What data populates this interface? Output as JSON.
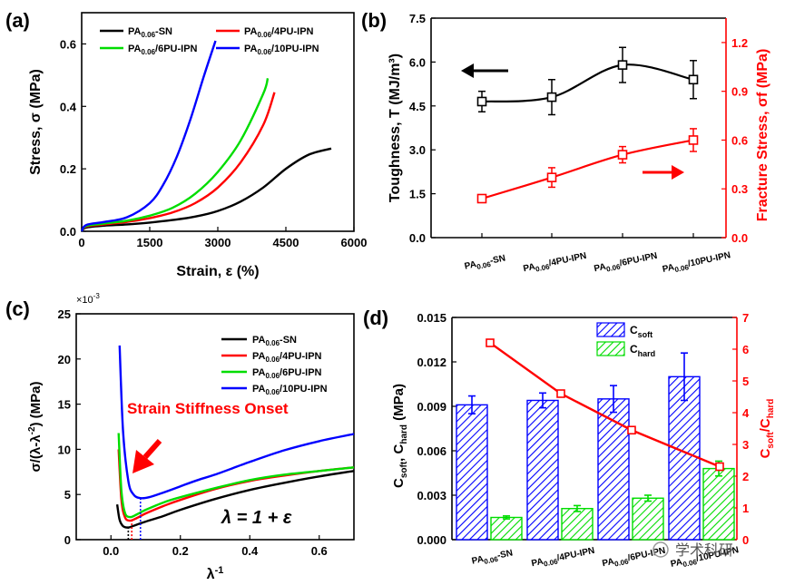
{
  "panels": {
    "a": {
      "label": "(a)"
    },
    "b": {
      "label": "(b)"
    },
    "c": {
      "label": "(c)",
      "axis_multiplier": "×10",
      "axis_multiplier_exp": "-3"
    },
    "d": {
      "label": "(d)"
    }
  },
  "watermark": "学术科研",
  "chart_data": [
    {
      "panel": "a",
      "type": "line",
      "xlabel": "Strain, ε (%)",
      "ylabel": "Stress, σ (MPa)",
      "xlim": [
        0,
        6000
      ],
      "ylim": [
        0,
        0.7
      ],
      "xticks": [
        0,
        1500,
        3000,
        4500,
        6000
      ],
      "yticks": [
        0.0,
        0.2,
        0.4,
        0.6
      ],
      "legend": "top",
      "series": [
        {
          "name": "PA0.06-SN",
          "base": "PA",
          "sub": "0.06",
          "suffix": "-SN",
          "color": "#000000",
          "x": [
            0,
            100,
            500,
            1000,
            1500,
            2000,
            2500,
            3000,
            3500,
            4000,
            4500,
            5000,
            5500
          ],
          "y": [
            0,
            0.012,
            0.018,
            0.022,
            0.028,
            0.036,
            0.047,
            0.065,
            0.095,
            0.14,
            0.2,
            0.245,
            0.265
          ]
        },
        {
          "name": "PA0.06/4PU-IPN",
          "base": "PA",
          "sub": "0.06",
          "suffix": "/4PU-IPN",
          "color": "#ff0000",
          "x": [
            0,
            100,
            500,
            1000,
            1500,
            2000,
            2500,
            3000,
            3500,
            4000,
            4250
          ],
          "y": [
            0,
            0.015,
            0.022,
            0.03,
            0.042,
            0.06,
            0.09,
            0.14,
            0.22,
            0.34,
            0.445
          ]
        },
        {
          "name": "PA0.06/6PU-IPN",
          "base": "PA",
          "sub": "0.06",
          "suffix": "/6PU-IPN",
          "color": "#00dd00",
          "x": [
            0,
            100,
            500,
            1000,
            1500,
            2000,
            2500,
            3000,
            3500,
            4000,
            4100
          ],
          "y": [
            0,
            0.017,
            0.025,
            0.034,
            0.05,
            0.075,
            0.12,
            0.19,
            0.29,
            0.44,
            0.49
          ]
        },
        {
          "name": "PA0.06/10PU-IPN",
          "base": "PA",
          "sub": "0.06",
          "suffix": "/10PU-IPN",
          "color": "#0000ff",
          "x": [
            0,
            100,
            500,
            1000,
            1500,
            1800,
            2100,
            2400,
            2700,
            2950
          ],
          "y": [
            0,
            0.02,
            0.03,
            0.045,
            0.09,
            0.15,
            0.24,
            0.36,
            0.5,
            0.61
          ]
        }
      ]
    },
    {
      "panel": "b",
      "type": "line",
      "categories": [
        "PA0.06-SN",
        "PA0.06/4PU-IPN",
        "PA0.06/6PU-IPN",
        "PA0.06/10PU-IPN"
      ],
      "category_parts": [
        {
          "base": "PA",
          "sub": "0.06",
          "suffix": "-SN"
        },
        {
          "base": "PA",
          "sub": "0.06",
          "suffix": "/4PU-IPN"
        },
        {
          "base": "PA",
          "sub": "0.06",
          "suffix": "/6PU-IPN"
        },
        {
          "base": "PA",
          "sub": "0.06",
          "suffix": "/10PU-IPN"
        }
      ],
      "ylabel_left": "Toughness, T (MJ/m³)",
      "ylabel_right": "Fracture Stress, σf (MPa)",
      "ylim_left": [
        0,
        7.5
      ],
      "ylim_right": [
        0,
        1.35
      ],
      "yticks_left": [
        "0.0",
        "1.5",
        "3.0",
        "4.5",
        "6.0",
        "7.5"
      ],
      "yticks_right": [
        "0.0",
        "0.3",
        "0.6",
        "0.9",
        "1.2"
      ],
      "series": [
        {
          "name": "Toughness",
          "axis": "left",
          "color": "#000000",
          "marker": "square-open",
          "values": [
            4.65,
            4.8,
            5.9,
            5.4
          ],
          "errors": [
            0.35,
            0.6,
            0.6,
            0.65
          ]
        },
        {
          "name": "Fracture Stress",
          "axis": "right",
          "color": "#ff0000",
          "marker": "square-open",
          "values": [
            0.24,
            0.37,
            0.51,
            0.6
          ],
          "errors": [
            0.02,
            0.06,
            0.05,
            0.07
          ]
        }
      ]
    },
    {
      "panel": "c",
      "type": "line",
      "xlabel": "λ-1",
      "ylabel": "σ/(λ-λ-2) (MPa)",
      "xlim": [
        -0.1,
        0.7
      ],
      "ylim": [
        0,
        25
      ],
      "xticks": [
        "0.0",
        "0.2",
        "0.4",
        "0.6"
      ],
      "yticks": [
        "0",
        "5",
        "10",
        "15",
        "20",
        "25"
      ],
      "annotation": "Strain Stiffness Onset",
      "equation": "λ = 1 + ε",
      "legend": "top-right",
      "series": [
        {
          "name": "PA0.06-SN",
          "base": "PA",
          "sub": "0.06",
          "suffix": "-SN",
          "color": "#000000",
          "x": [
            0.018,
            0.025,
            0.035,
            0.05,
            0.07,
            0.1,
            0.15,
            0.2,
            0.3,
            0.4,
            0.5,
            0.6,
            0.7
          ],
          "y": [
            3.9,
            2.2,
            1.5,
            1.35,
            1.6,
            2.0,
            2.6,
            3.3,
            4.5,
            5.5,
            6.3,
            7.0,
            7.6
          ]
        },
        {
          "name": "PA0.06/4PU-IPN",
          "base": "PA",
          "sub": "0.06",
          "suffix": "/4PU-IPN",
          "color": "#ff0000",
          "x": [
            0.022,
            0.03,
            0.04,
            0.055,
            0.075,
            0.1,
            0.15,
            0.2,
            0.3,
            0.4,
            0.5,
            0.6,
            0.7
          ],
          "y": [
            10.0,
            4.5,
            2.5,
            2.1,
            2.4,
            2.9,
            3.7,
            4.4,
            5.6,
            6.5,
            7.1,
            7.6,
            8.0
          ]
        },
        {
          "name": "PA0.06/6PU-IPN",
          "base": "PA",
          "sub": "0.06",
          "suffix": "/6PU-IPN",
          "color": "#00dd00",
          "x": [
            0.022,
            0.03,
            0.04,
            0.055,
            0.075,
            0.1,
            0.15,
            0.2,
            0.3,
            0.4,
            0.5,
            0.6,
            0.7
          ],
          "y": [
            11.8,
            5.5,
            3.0,
            2.5,
            2.8,
            3.3,
            4.1,
            4.7,
            5.7,
            6.6,
            7.2,
            7.6,
            8.0
          ]
        },
        {
          "name": "PA0.06/10PU-IPN",
          "base": "PA",
          "sub": "0.06",
          "suffix": "/10PU-IPN",
          "color": "#0000ff",
          "x": [
            0.025,
            0.035,
            0.05,
            0.065,
            0.085,
            0.11,
            0.15,
            0.2,
            0.25,
            0.3,
            0.4,
            0.5,
            0.6,
            0.7
          ],
          "y": [
            21.5,
            12.0,
            6.5,
            5.0,
            4.6,
            4.7,
            5.2,
            5.9,
            6.6,
            7.2,
            8.6,
            9.9,
            10.9,
            11.7
          ]
        }
      ]
    },
    {
      "panel": "d",
      "type": "bar",
      "categories": [
        "PA0.06-SN",
        "PA0.06/4PU-IPN",
        "PA0.06/6PU-IPN",
        "PA0.06/10PU-IPN"
      ],
      "category_parts": [
        {
          "base": "PA",
          "sub": "0.06",
          "suffix": "-SN"
        },
        {
          "base": "PA",
          "sub": "0.06",
          "suffix": "/4PU-IPN"
        },
        {
          "base": "PA",
          "sub": "0.06",
          "suffix": "/6PU-IPN"
        },
        {
          "base": "PA",
          "sub": "0.06",
          "suffix": "/10PU-IPN"
        }
      ],
      "ylabel_left": "Csoft, Chard (MPa)",
      "ylabel_right": "Csoft/Chard",
      "ylim_left": [
        0,
        0.015
      ],
      "ylim_right": [
        0,
        7
      ],
      "yticks_left": [
        "0.000",
        "0.003",
        "0.006",
        "0.009",
        "0.012",
        "0.015"
      ],
      "yticks_right": [
        "0",
        "1",
        "2",
        "3",
        "4",
        "5",
        "6",
        "7"
      ],
      "legend": "top-center",
      "series": [
        {
          "name": "Csoft",
          "sub": "soft",
          "axis": "left",
          "color": "#0000ff",
          "pattern": "hatched",
          "values": [
            0.0091,
            0.0094,
            0.0095,
            0.011
          ],
          "errors": [
            0.0006,
            0.0005,
            0.0009,
            0.0016
          ]
        },
        {
          "name": "Chard",
          "sub": "hard",
          "axis": "left",
          "color": "#00dd00",
          "pattern": "hatched",
          "values": [
            0.0015,
            0.0021,
            0.0028,
            0.0048
          ],
          "errors": [
            0.0001,
            0.0002,
            0.0002,
            0.0005
          ]
        },
        {
          "name": "Csoft/Chard",
          "axis": "right",
          "color": "#ff0000",
          "marker": "square-open",
          "type": "line",
          "values": [
            6.2,
            4.6,
            3.45,
            2.3
          ]
        }
      ]
    }
  ]
}
